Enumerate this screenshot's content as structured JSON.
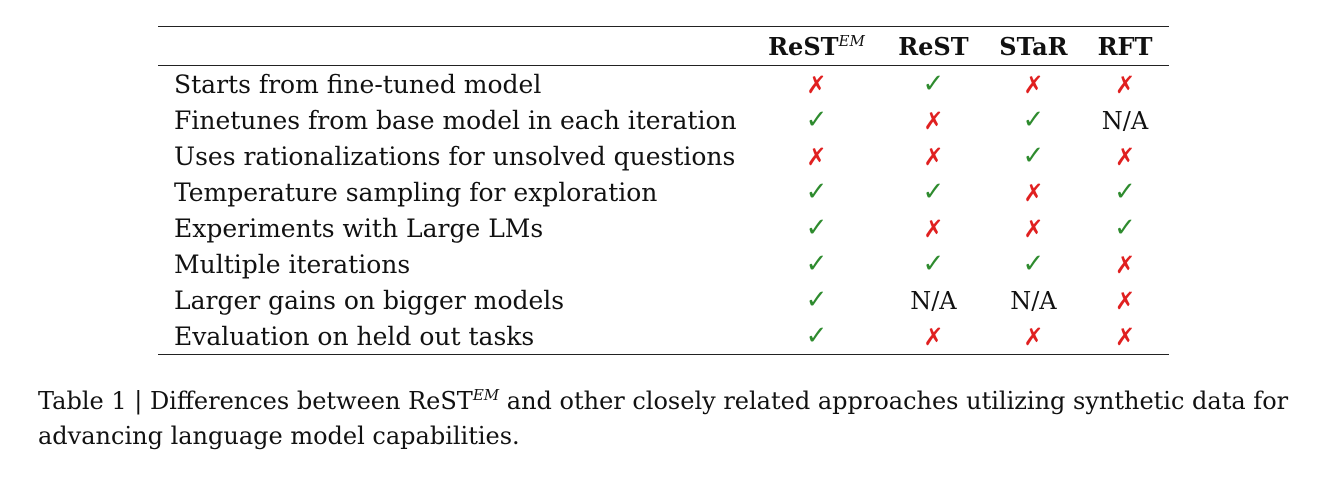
{
  "table": {
    "columns": [
      {
        "name": "ReST",
        "sup": "EM"
      },
      {
        "name": "ReST",
        "sup": ""
      },
      {
        "name": "STaR",
        "sup": ""
      },
      {
        "name": "RFT",
        "sup": ""
      }
    ],
    "rows": [
      {
        "label": "Starts from fine-tuned model",
        "values": [
          "cross",
          "check",
          "cross",
          "cross"
        ]
      },
      {
        "label": "Finetunes from base model in each iteration",
        "values": [
          "check",
          "cross",
          "check",
          "N/A"
        ]
      },
      {
        "label": "Uses rationalizations for unsolved questions",
        "values": [
          "cross",
          "cross",
          "check",
          "cross"
        ]
      },
      {
        "label": "Temperature sampling for exploration",
        "values": [
          "check",
          "check",
          "cross",
          "check"
        ]
      },
      {
        "label": "Experiments with Large LMs",
        "values": [
          "check",
          "cross",
          "cross",
          "check"
        ]
      },
      {
        "label": "Multiple iterations",
        "values": [
          "check",
          "check",
          "check",
          "cross"
        ]
      },
      {
        "label": "Larger gains on bigger models",
        "values": [
          "check",
          "N/A",
          "N/A",
          "cross"
        ]
      },
      {
        "label": "Evaluation on held out tasks",
        "values": [
          "check",
          "cross",
          "cross",
          "cross"
        ]
      }
    ],
    "symbols": {
      "check": "✓",
      "cross": "✗"
    },
    "colors": {
      "check": "#2e8b2e",
      "cross": "#e02020"
    }
  },
  "caption": {
    "prefix": "Table 1 | Differences between ReST",
    "sup": "EM",
    "suffix": " and other closely related approaches utilizing synthetic data for advancing language model capabilities."
  }
}
